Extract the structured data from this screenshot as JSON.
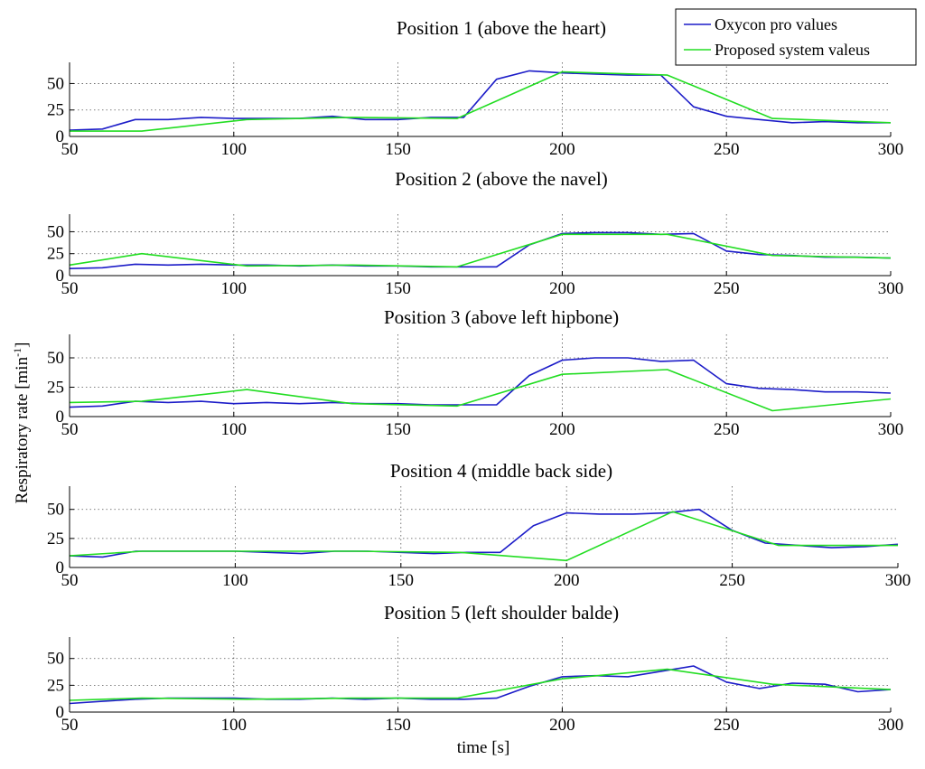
{
  "chart_data": {
    "type": "line",
    "ylabel": "Respiratory rate [min",
    "ylabel_sup": "-1",
    "ylabel_close": "]",
    "xlabel": "time [s]",
    "xlim": [
      50,
      300
    ],
    "ylim": [
      0,
      70
    ],
    "xticks": [
      50,
      100,
      150,
      200,
      250,
      300
    ],
    "yticks": [
      0,
      25,
      50
    ],
    "grid": true,
    "legend": {
      "placement": "top-right",
      "entries": [
        "Oxycon pro values",
        "Proposed system valeus"
      ]
    },
    "series_colors": [
      "#1c1cc8",
      "#22dd22"
    ],
    "panels": [
      {
        "title": "Position 1 (above the heart)",
        "series": [
          {
            "name": "Oxycon pro values",
            "x": [
              50,
              60,
              70,
              80,
              90,
              100,
              110,
              120,
              130,
              140,
              150,
              160,
              170,
              180,
              190,
              200,
              210,
              220,
              230,
              240,
              250,
              260,
              270,
              280,
              290,
              300
            ],
            "y": [
              6,
              7,
              16,
              16,
              18,
              17,
              17,
              17,
              19,
              16,
              16,
              18,
              18,
              54,
              62,
              60,
              59,
              58,
              58,
              28,
              19,
              16,
              13,
              14,
              13,
              13
            ]
          },
          {
            "name": "Proposed system valeus",
            "x": [
              50,
              72,
              104,
              136,
              168,
              200,
              232,
              264,
              300
            ],
            "y": [
              5,
              5,
              16,
              18,
              17,
              61,
              58,
              17,
              13
            ]
          }
        ]
      },
      {
        "title": "Position 2 (above the navel)",
        "series": [
          {
            "name": "Oxycon pro values",
            "x": [
              50,
              60,
              70,
              80,
              90,
              100,
              110,
              120,
              130,
              140,
              150,
              160,
              170,
              180,
              190,
              200,
              210,
              220,
              230,
              240,
              250,
              260,
              270,
              280,
              290,
              300
            ],
            "y": [
              8,
              9,
              13,
              12,
              13,
              12,
              12,
              11,
              12,
              11,
              11,
              10,
              10,
              10,
              35,
              48,
              49,
              49,
              47,
              48,
              28,
              24,
              23,
              21,
              21,
              20
            ]
          },
          {
            "name": "Proposed system valeus",
            "x": [
              50,
              72,
              104,
              136,
              168,
              200,
              232,
              264,
              300
            ],
            "y": [
              12,
              25,
              11,
              12,
              10,
              47,
              47,
              23,
              20
            ]
          }
        ]
      },
      {
        "title": "Position 3 (above left hipbone)",
        "series": [
          {
            "name": "Oxycon pro values",
            "x": [
              50,
              60,
              70,
              80,
              90,
              100,
              110,
              120,
              130,
              140,
              150,
              160,
              170,
              180,
              190,
              200,
              210,
              220,
              230,
              240,
              250,
              260,
              270,
              280,
              290,
              300
            ],
            "y": [
              8,
              9,
              13,
              12,
              13,
              11,
              12,
              11,
              12,
              11,
              11,
              10,
              10,
              10,
              35,
              48,
              50,
              50,
              47,
              48,
              28,
              24,
              23,
              21,
              21,
              20
            ]
          },
          {
            "name": "Proposed system valeus",
            "x": [
              50,
              72,
              104,
              136,
              168,
              200,
              232,
              264,
              300
            ],
            "y": [
              12,
              13,
              23,
              11,
              9,
              36,
              40,
              5,
              15
            ]
          }
        ]
      },
      {
        "title": "Position 4 (middle back side)",
        "series": [
          {
            "name": "Oxycon pro values",
            "x": [
              50,
              60,
              70,
              80,
              90,
              100,
              110,
              120,
              130,
              140,
              150,
              160,
              170,
              180,
              190,
              200,
              210,
              220,
              230,
              240,
              250,
              260,
              270,
              280,
              290,
              300
            ],
            "y": [
              10,
              9,
              14,
              14,
              14,
              14,
              13,
              12,
              14,
              14,
              13,
              12,
              13,
              13,
              36,
              47,
              46,
              46,
              47,
              50,
              32,
              21,
              19,
              17,
              18,
              20
            ]
          },
          {
            "name": "Proposed system valeus",
            "x": [
              50,
              72,
              104,
              136,
              168,
              200,
              232,
              264,
              300
            ],
            "y": [
              10,
              14,
              14,
              14,
              13,
              6,
              48,
              19,
              19
            ]
          }
        ]
      },
      {
        "title": "Position 5 (left shoulder balde)",
        "series": [
          {
            "name": "Oxycon pro values",
            "x": [
              50,
              60,
              70,
              80,
              90,
              100,
              110,
              120,
              130,
              140,
              150,
              160,
              170,
              180,
              190,
              200,
              210,
              220,
              230,
              240,
              250,
              260,
              270,
              280,
              290,
              300
            ],
            "y": [
              8,
              10,
              12,
              13,
              13,
              13,
              12,
              12,
              13,
              12,
              13,
              12,
              12,
              13,
              24,
              33,
              34,
              33,
              38,
              43,
              28,
              22,
              27,
              26,
              19,
              21
            ]
          },
          {
            "name": "Proposed system valeus",
            "x": [
              50,
              72,
              104,
              136,
              168,
              200,
              232,
              264,
              300
            ],
            "y": [
              11,
              13,
              12,
              13,
              13,
              31,
              40,
              26,
              21
            ]
          }
        ]
      }
    ]
  }
}
